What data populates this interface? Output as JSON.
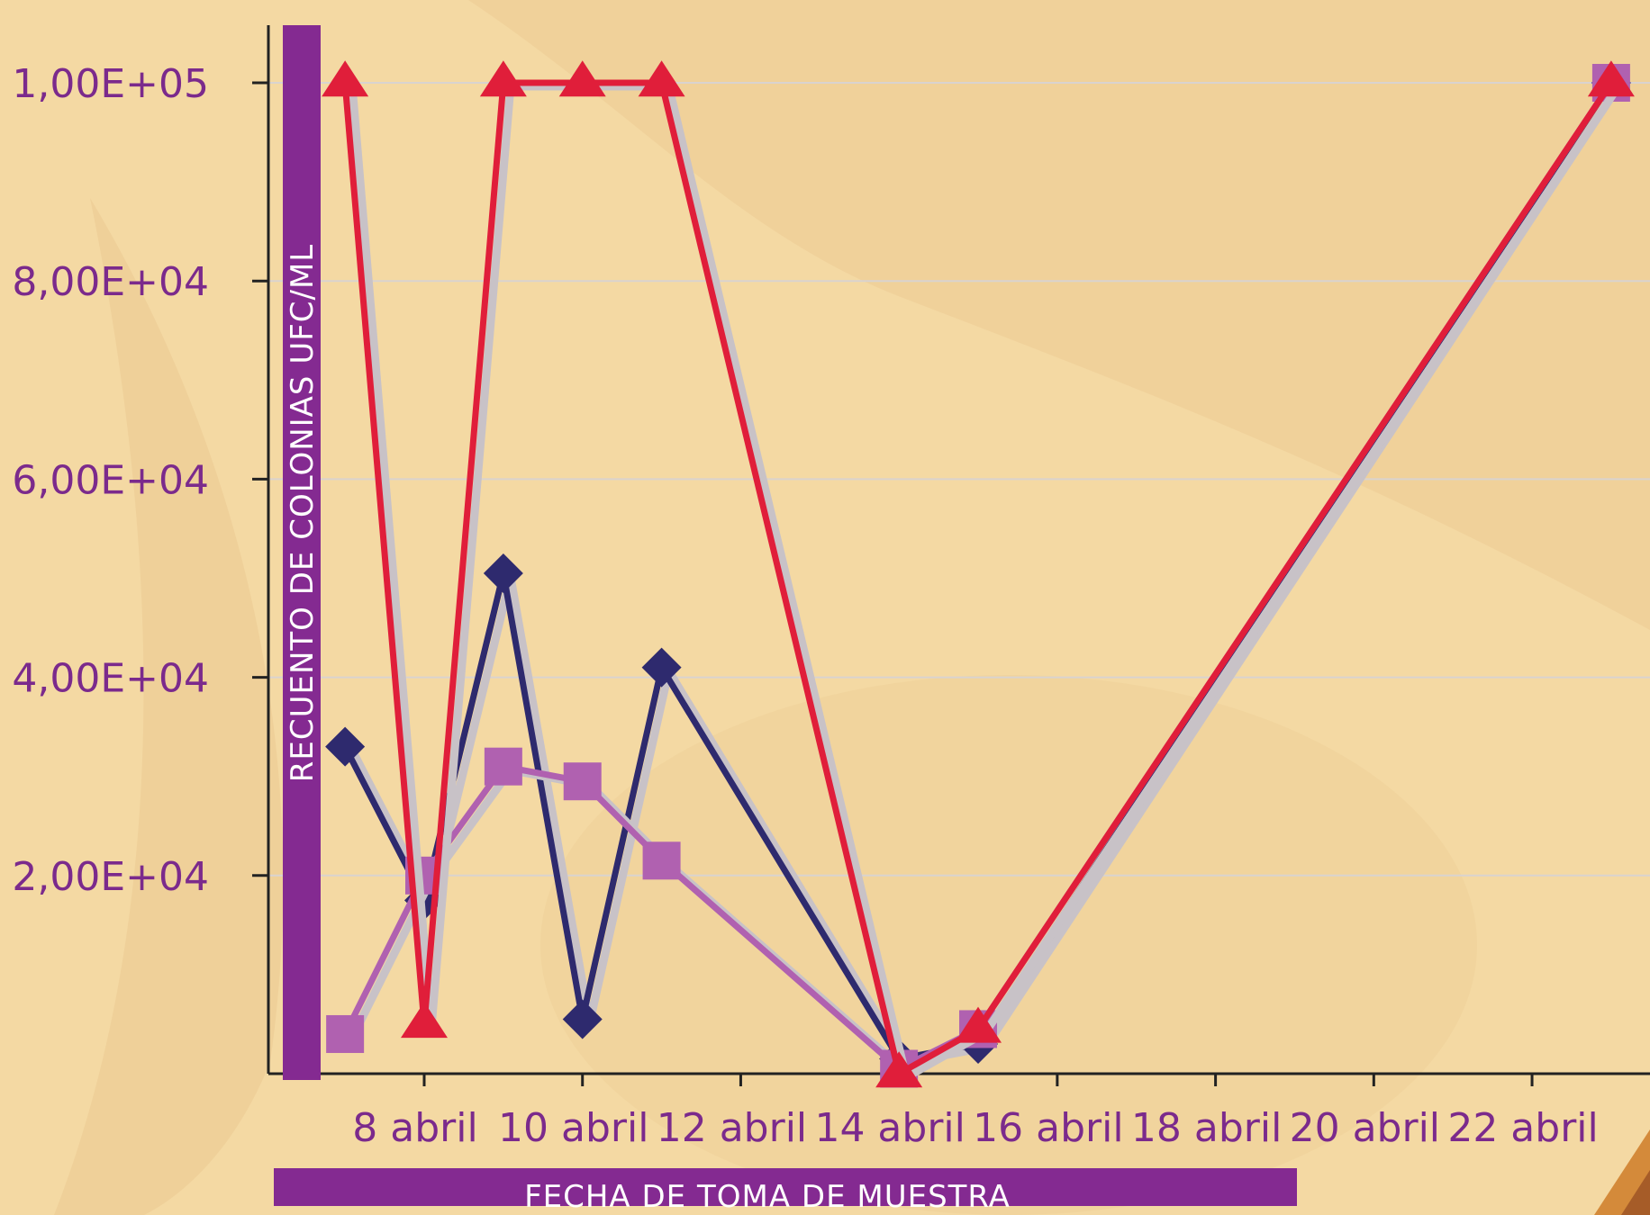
{
  "chart_data": {
    "type": "line",
    "xlabel": "FECHA DE TOMA DE MUESTRA",
    "ylabel": "RECUENTO DE COLONIAS UFC/ML",
    "ylim": [
      0,
      100000
    ],
    "xlim": [
      6,
      23.5
    ],
    "x_ticks": [
      8,
      10,
      12,
      14,
      16,
      18,
      20,
      22
    ],
    "x_tick_labels": [
      "8 abril",
      "10 abril",
      "12 abril",
      "14  abril",
      "16 abril",
      "18 abril",
      "20 abril",
      "22 abril"
    ],
    "y_ticks": [
      20000,
      40000,
      60000,
      80000,
      100000
    ],
    "y_tick_labels": [
      "2,00E+04",
      "4,00E+04",
      "6,00E+04",
      "8,00E+04",
      "1,00E+05"
    ],
    "grid": "horizontal",
    "series": [
      {
        "marker": "diamond",
        "color": "#2e2a6e",
        "points": [
          [
            7,
            33000
          ],
          [
            8,
            17500
          ],
          [
            9,
            50500
          ],
          [
            10,
            5500
          ],
          [
            11,
            41000
          ],
          [
            14,
            1500
          ],
          [
            15,
            3000
          ],
          [
            23,
            100000
          ]
        ]
      },
      {
        "marker": "square",
        "color": "#b061b0",
        "points": [
          [
            7,
            4000
          ],
          [
            8,
            20000
          ],
          [
            9,
            31000
          ],
          [
            10,
            29500
          ],
          [
            11,
            21500
          ],
          [
            14,
            500
          ],
          [
            15,
            4500
          ],
          [
            23,
            100000
          ]
        ]
      },
      {
        "marker": "triangle",
        "color": "#e01e3a",
        "points": [
          [
            7,
            100000
          ],
          [
            8,
            5000
          ],
          [
            9,
            100000
          ],
          [
            10,
            100000
          ],
          [
            11,
            100000
          ],
          [
            14,
            0
          ],
          [
            15,
            4500
          ],
          [
            23,
            100000
          ]
        ]
      }
    ]
  },
  "colors": {
    "background": "#f4d9a3",
    "accent_bar": "#842a91",
    "tick_text": "#7b2a8c",
    "gridline": "#d9d3cf"
  }
}
